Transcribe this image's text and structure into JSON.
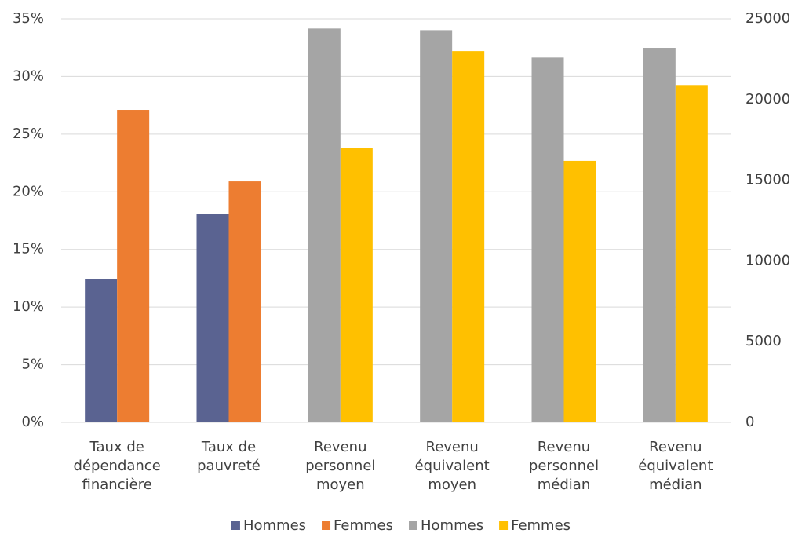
{
  "chart_data": {
    "type": "bar",
    "categories": [
      [
        "Taux de",
        "dépendance",
        "financière"
      ],
      [
        "Taux de",
        "pauvreté"
      ],
      [
        "Revenu",
        "personnel",
        "moyen"
      ],
      [
        "Revenu",
        "équivalent",
        "moyen"
      ],
      [
        "Revenu",
        "personnel",
        "médian"
      ],
      [
        "Revenu",
        "équivalent",
        "médian"
      ]
    ],
    "series": [
      {
        "name": "Hommes",
        "color": "#5a6391",
        "values": [
          12.4,
          18.1,
          null,
          null,
          null,
          null
        ]
      },
      {
        "name": "Femmes",
        "color": "#ed7d31",
        "values": [
          27.1,
          20.9,
          null,
          null,
          null,
          null
        ]
      },
      {
        "name": "Hommes",
        "color": "#a5a5a5",
        "axis": "y2",
        "values": [
          null,
          null,
          24400,
          24300,
          22600,
          23200
        ]
      },
      {
        "name": "Femmes",
        "color": "#ffc000",
        "axis": "y2",
        "values": [
          null,
          null,
          17000,
          23000,
          16200,
          20900
        ]
      }
    ],
    "ylim": [
      0,
      35
    ],
    "yticks": [
      {
        "value": 0,
        "label": "0%"
      },
      {
        "value": 5,
        "label": "5%"
      },
      {
        "value": 10,
        "label": "10%"
      },
      {
        "value": 15,
        "label": "15%"
      },
      {
        "value": 20,
        "label": "20%"
      },
      {
        "value": 25,
        "label": "25%"
      },
      {
        "value": 30,
        "label": "30%"
      },
      {
        "value": 35,
        "label": "35%"
      }
    ],
    "y2lim": [
      0,
      25000
    ],
    "y2ticks": [
      0,
      5000,
      10000,
      15000,
      20000,
      25000
    ],
    "grid": true,
    "legend": "bottom"
  }
}
